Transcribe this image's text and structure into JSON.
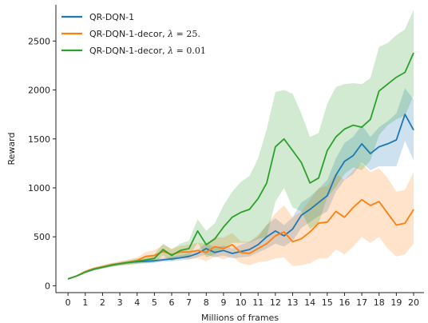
{
  "chart_data": {
    "type": "line",
    "title": "",
    "xlabel": "Millions of frames",
    "ylabel": "Reward",
    "xlim": [
      -0.7,
      20.6
    ],
    "ylim": [
      -70,
      2870
    ],
    "xticks": [
      0,
      1,
      2,
      3,
      4,
      5,
      6,
      7,
      8,
      9,
      10,
      11,
      12,
      13,
      14,
      15,
      16,
      17,
      18,
      19,
      20
    ],
    "yticks": [
      0,
      500,
      1000,
      1500,
      2000,
      2500
    ],
    "grid": false,
    "legend_position": "top-left",
    "series": [
      {
        "name": "QR-DQN-1",
        "name_math": "",
        "name_num": "",
        "color": "#1f77b4",
        "x": [
          0,
          0.5,
          1,
          1.5,
          2,
          2.5,
          3,
          3.5,
          4,
          4.5,
          5,
          5.5,
          6,
          6.5,
          7,
          7.5,
          8,
          8.5,
          9,
          9.5,
          10,
          10.5,
          11,
          11.5,
          12,
          12.5,
          13,
          13.5,
          14,
          14.5,
          15,
          15.5,
          16,
          16.5,
          17,
          17.5,
          18,
          18.5,
          19,
          19.5,
          20
        ],
        "y": [
          70,
          100,
          140,
          170,
          190,
          210,
          225,
          238,
          245,
          250,
          255,
          265,
          275,
          285,
          300,
          330,
          380,
          340,
          360,
          330,
          350,
          370,
          420,
          500,
          560,
          510,
          580,
          720,
          780,
          850,
          920,
          1130,
          1270,
          1330,
          1450,
          1350,
          1420,
          1450,
          1490,
          1750,
          1590
        ],
        "upper": [
          75,
          108,
          150,
          182,
          202,
          222,
          238,
          252,
          260,
          268,
          275,
          285,
          298,
          312,
          330,
          368,
          440,
          390,
          410,
          380,
          420,
          445,
          500,
          620,
          690,
          620,
          700,
          850,
          910,
          990,
          1080,
          1300,
          1460,
          1520,
          1640,
          1520,
          1620,
          1680,
          1760,
          2020,
          1900
        ],
        "lower": [
          65,
          92,
          130,
          158,
          178,
          198,
          212,
          224,
          230,
          232,
          235,
          245,
          252,
          258,
          270,
          292,
          320,
          290,
          310,
          280,
          290,
          300,
          340,
          380,
          430,
          400,
          460,
          590,
          650,
          710,
          760,
          960,
          1080,
          1140,
          1260,
          1180,
          1220,
          1220,
          1220,
          1480,
          1280
        ]
      },
      {
        "name": "QR-DQN-1-decor, ",
        "name_math": "λ",
        "name_num": " = 25.",
        "color": "#ff7f0e",
        "x": [
          0,
          0.5,
          1,
          1.5,
          2,
          2.5,
          3,
          3.5,
          4,
          4.5,
          5,
          5.5,
          6,
          6.5,
          7,
          7.5,
          8,
          8.5,
          9,
          9.5,
          10,
          10.5,
          11,
          11.5,
          12,
          12.5,
          13,
          13.5,
          14,
          14.5,
          15,
          15.5,
          16,
          16.5,
          17,
          17.5,
          18,
          18.5,
          19,
          19.5,
          20
        ],
        "y": [
          70,
          100,
          145,
          175,
          195,
          215,
          228,
          240,
          258,
          300,
          310,
          350,
          320,
          345,
          345,
          360,
          340,
          400,
          380,
          420,
          340,
          330,
          380,
          430,
          510,
          550,
          450,
          480,
          550,
          640,
          650,
          760,
          700,
          800,
          880,
          820,
          860,
          740,
          620,
          640,
          780
        ],
        "upper": [
          75,
          110,
          160,
          190,
          212,
          235,
          250,
          268,
          290,
          345,
          360,
          420,
          380,
          405,
          420,
          440,
          430,
          500,
          490,
          540,
          450,
          450,
          520,
          620,
          740,
          820,
          700,
          760,
          880,
          1000,
          1020,
          1150,
          1080,
          1180,
          1250,
          1160,
          1200,
          1100,
          960,
          980,
          1160
        ],
        "lower": [
          65,
          90,
          130,
          160,
          178,
          195,
          206,
          212,
          226,
          255,
          260,
          280,
          260,
          285,
          270,
          280,
          250,
          300,
          270,
          300,
          230,
          210,
          240,
          250,
          280,
          290,
          200,
          210,
          230,
          280,
          280,
          370,
          320,
          400,
          500,
          440,
          500,
          380,
          300,
          320,
          430
        ]
      },
      {
        "name": "QR-DQN-1-decor, ",
        "name_math": "λ",
        "name_num": " = 0.01",
        "color": "#2ca02c",
        "x": [
          0,
          0.5,
          1,
          1.5,
          2,
          2.5,
          3,
          3.5,
          4,
          4.5,
          5,
          5.5,
          6,
          6.5,
          7,
          7.5,
          8,
          8.5,
          9,
          9.5,
          10,
          10.5,
          11,
          11.5,
          12,
          12.5,
          13,
          13.5,
          14,
          14.5,
          15,
          15.5,
          16,
          16.5,
          17,
          17.5,
          18,
          18.5,
          19,
          19.5,
          20
        ],
        "y": [
          70,
          100,
          140,
          170,
          190,
          210,
          225,
          238,
          250,
          265,
          280,
          370,
          310,
          360,
          380,
          560,
          420,
          480,
          600,
          700,
          750,
          780,
          890,
          1050,
          1420,
          1500,
          1380,
          1260,
          1050,
          1100,
          1380,
          1520,
          1600,
          1640,
          1620,
          1700,
          1990,
          2060,
          2130,
          2180,
          2380
        ],
        "upper": [
          75,
          108,
          152,
          185,
          205,
          228,
          244,
          260,
          278,
          300,
          320,
          430,
          370,
          430,
          460,
          680,
          560,
          640,
          820,
          960,
          1060,
          1120,
          1300,
          1600,
          1980,
          2000,
          1960,
          1760,
          1520,
          1560,
          1860,
          2030,
          2060,
          2070,
          2060,
          2120,
          2440,
          2480,
          2560,
          2620,
          2820
        ],
        "lower": [
          65,
          92,
          128,
          155,
          175,
          192,
          206,
          216,
          222,
          230,
          240,
          310,
          250,
          290,
          300,
          440,
          290,
          320,
          380,
          440,
          440,
          440,
          480,
          500,
          860,
          1000,
          800,
          760,
          580,
          640,
          900,
          1010,
          1140,
          1210,
          1180,
          1280,
          1540,
          1640,
          1700,
          1740,
          1940
        ]
      }
    ]
  }
}
